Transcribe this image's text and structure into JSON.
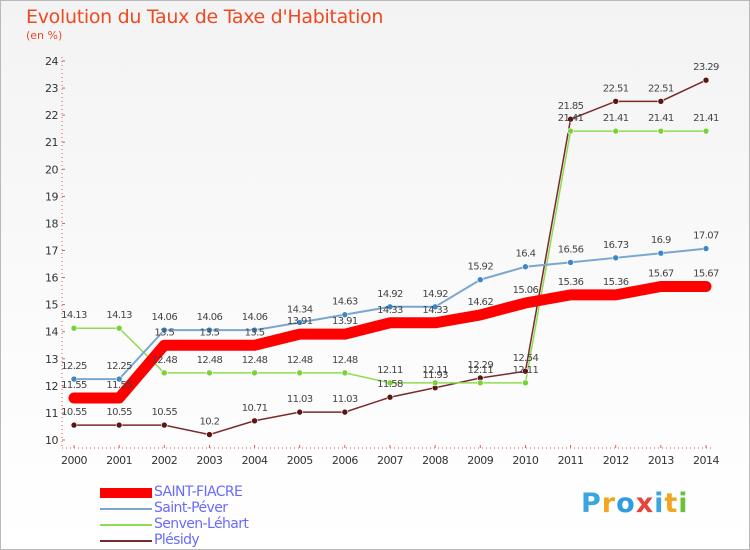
{
  "chart_data": {
    "type": "line",
    "title": "Evolution du Taux de Taxe d'Habitation",
    "unit_label": "(en %)",
    "x": [
      2000,
      2001,
      2002,
      2003,
      2004,
      2005,
      2006,
      2007,
      2008,
      2009,
      2010,
      2011,
      2012,
      2013,
      2014
    ],
    "ylim": [
      10,
      24
    ],
    "yticks": [
      10,
      11,
      12,
      13,
      14,
      15,
      16,
      17,
      18,
      19,
      20,
      21,
      22,
      23,
      24
    ],
    "grid": false,
    "legend_placement": "bottom-left",
    "series": [
      {
        "name": "SAINT-FIACRE",
        "color": "#ff0000",
        "values": [
          11.55,
          11.55,
          13.5,
          13.5,
          13.5,
          13.91,
          13.91,
          14.33,
          14.33,
          14.62,
          15.06,
          15.36,
          15.36,
          15.67,
          15.67
        ],
        "labels": [
          "11.55",
          "11.55",
          "13.5",
          "13.5",
          "13.5",
          "13.91",
          "13.91",
          "14.33",
          "14.33",
          "14.62",
          "15.06",
          "15.36",
          "15.36",
          "15.67",
          "15.67"
        ]
      },
      {
        "name": "Saint-Péver",
        "color": "#7ba7cf",
        "values": [
          12.25,
          12.25,
          14.06,
          14.06,
          14.06,
          14.34,
          14.63,
          14.92,
          14.92,
          15.92,
          16.4,
          16.56,
          16.73,
          16.9,
          17.07
        ],
        "labels": [
          "12.25",
          "12.25",
          "14.06",
          "14.06",
          "14.06",
          "14.34",
          "14.63",
          "14.92",
          "14.92",
          "15.92",
          "16.4",
          "16.56",
          "16.73",
          "16.9",
          "17.07"
        ]
      },
      {
        "name": "Senven-Léhart",
        "color": "#8fdc52",
        "values": [
          14.13,
          14.13,
          12.48,
          12.48,
          12.48,
          12.48,
          12.48,
          12.11,
          12.11,
          12.11,
          12.11,
          21.41,
          21.41,
          21.41,
          21.41
        ],
        "labels": [
          "14.13",
          "14.13",
          "12.48",
          "12.48",
          "12.48",
          "12.48",
          "12.48",
          "12.11",
          "12.11",
          "12.11",
          "12.11",
          "21.41",
          "21.41",
          "21.41",
          "21.41"
        ]
      },
      {
        "name": "Plésidy",
        "color": "#7a2a2a",
        "values": [
          10.55,
          10.55,
          10.55,
          10.2,
          10.71,
          11.03,
          11.03,
          11.58,
          11.93,
          12.29,
          12.54,
          21.85,
          22.51,
          22.51,
          23.29
        ],
        "labels": [
          "10.55",
          "10.55",
          "10.55",
          "10.2",
          "10.71",
          "11.03",
          "11.03",
          "11.58",
          "11.93",
          "12.29",
          "12.54",
          "21.85",
          "22.51",
          "22.51",
          "23.29"
        ]
      }
    ]
  },
  "logo": {
    "text": "Proxiti",
    "letter_colors": [
      "#3aa6e0",
      "#f2a51f",
      "#2f9be0",
      "#e8433a",
      "#3aa6e0",
      "#f2a51f",
      "#6ac23a"
    ]
  }
}
